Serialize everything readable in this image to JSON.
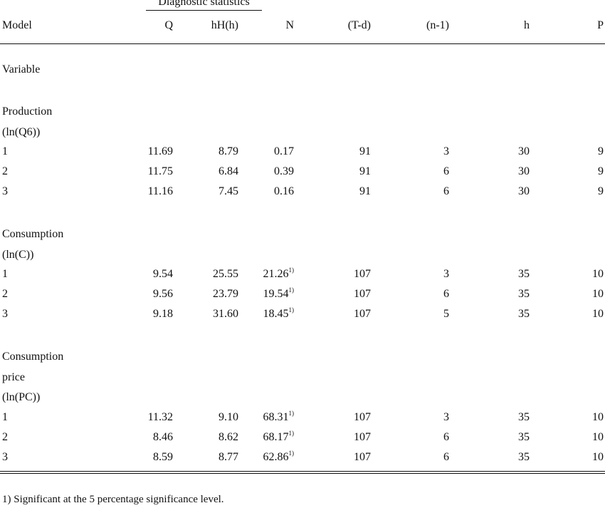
{
  "table": {
    "group_header": "Diagnostic statistics",
    "columns": [
      "Model",
      "Q",
      "hH(h)",
      "N",
      "(T-d)",
      "(n-1)",
      "h",
      "P"
    ],
    "variable_label": "Variable",
    "sections": [
      {
        "label_lines": [
          "Production",
          "(ln(Q6))"
        ],
        "rows": [
          {
            "model": "1",
            "q": "11.69",
            "hh": "8.79",
            "n": "0.17",
            "n_sup": "",
            "td": "91",
            "n1": "3",
            "h": "30",
            "p": "9"
          },
          {
            "model": "2",
            "q": "11.75",
            "hh": "6.84",
            "n": "0.39",
            "n_sup": "",
            "td": "91",
            "n1": "6",
            "h": "30",
            "p": "9"
          },
          {
            "model": "3",
            "q": "11.16",
            "hh": "7.45",
            "n": "0.16",
            "n_sup": "",
            "td": "91",
            "n1": "6",
            "h": "30",
            "p": "9"
          }
        ]
      },
      {
        "label_lines": [
          "Consumption",
          "(ln(C))"
        ],
        "rows": [
          {
            "model": "1",
            "q": "9.54",
            "hh": "25.55",
            "n": "21.26",
            "n_sup": "1)",
            "td": "107",
            "n1": "3",
            "h": "35",
            "p": "10"
          },
          {
            "model": "2",
            "q": "9.56",
            "hh": "23.79",
            "n": "19.54",
            "n_sup": "1)",
            "td": "107",
            "n1": "6",
            "h": "35",
            "p": "10"
          },
          {
            "model": "3",
            "q": "9.18",
            "hh": "31.60",
            "n": "18.45",
            "n_sup": "1)",
            "td": "107",
            "n1": "5",
            "h": "35",
            "p": "10"
          }
        ]
      },
      {
        "label_lines": [
          "Consumption",
          "price",
          "(ln(PC))"
        ],
        "rows": [
          {
            "model": "1",
            "q": "11.32",
            "hh": "9.10",
            "n": "68.31",
            "n_sup": "1)",
            "td": "107",
            "n1": "3",
            "h": "35",
            "p": "10"
          },
          {
            "model": "2",
            "q": "8.46",
            "hh": "8.62",
            "n": "68.17",
            "n_sup": "1)",
            "td": "107",
            "n1": "6",
            "h": "35",
            "p": "10"
          },
          {
            "model": "3",
            "q": "8.59",
            "hh": "8.77",
            "n": "62.86",
            "n_sup": "1)",
            "td": "107",
            "n1": "6",
            "h": "35",
            "p": "10"
          }
        ]
      }
    ],
    "footnote": "1) Significant at the 5 percentage significance level."
  }
}
